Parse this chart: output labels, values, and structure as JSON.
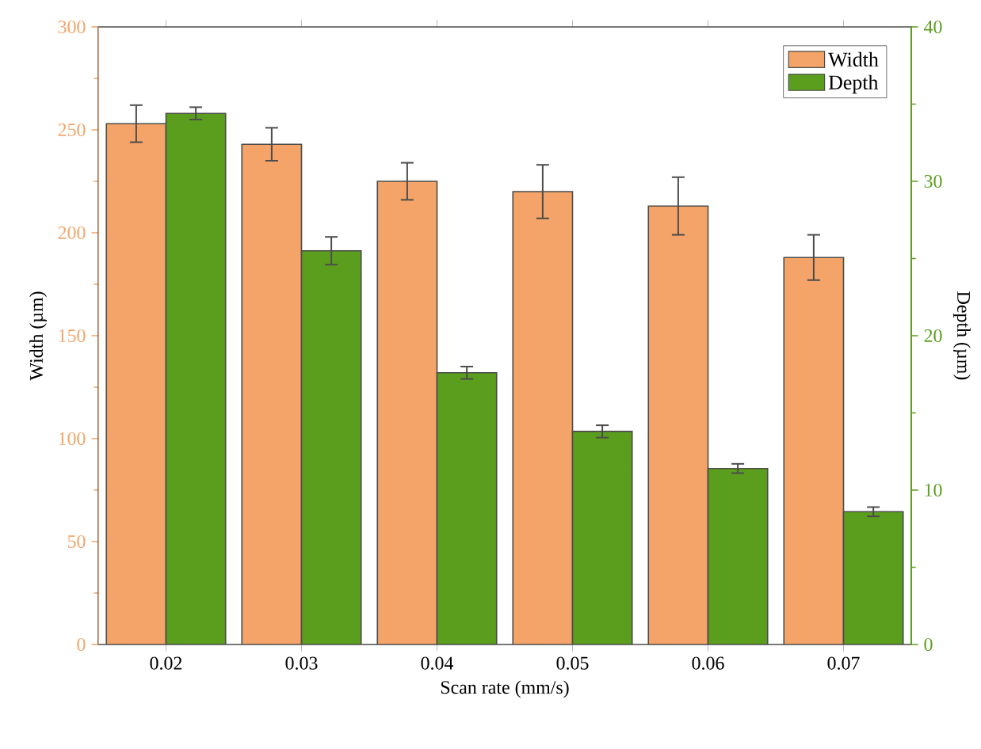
{
  "chart_data": {
    "type": "bar",
    "xlabel": "Scan rate (mm/s)",
    "ylabel": "Width (µm)",
    "y2label": "Depth (µm)",
    "categories": [
      "0.02",
      "0.03",
      "0.04",
      "0.05",
      "0.06",
      "0.07"
    ],
    "series": [
      {
        "name": "Width",
        "color": "#f4a468",
        "values": [
          253,
          243,
          225,
          220,
          213,
          188
        ],
        "errors": [
          9,
          8,
          9,
          13,
          14,
          11
        ]
      },
      {
        "name": "Depth",
        "color": "#5b9e1d",
        "axis": "y2",
        "values": [
          34.4,
          25.5,
          17.6,
          13.8,
          11.4,
          8.6
        ],
        "errors": [
          0.4,
          0.9,
          0.4,
          0.4,
          0.3,
          0.3
        ]
      }
    ],
    "ylim": [
      0,
      300
    ],
    "yticks": [
      0,
      50,
      100,
      150,
      200,
      250,
      300
    ],
    "y2lim": [
      0,
      40
    ],
    "y2ticks": [
      0,
      10,
      20,
      30,
      40
    ],
    "legend": "top right"
  }
}
